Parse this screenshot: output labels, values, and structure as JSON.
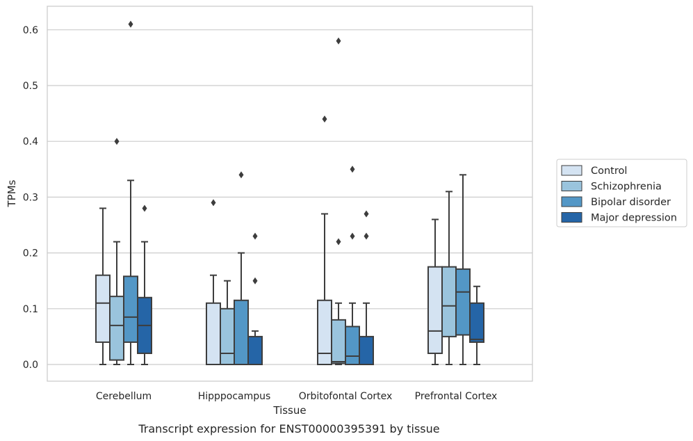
{
  "caption": "Transcript expression for ENST00000395391 by tissue",
  "chart_data": {
    "type": "box",
    "xlabel": "Tissue",
    "ylabel": "TPMs",
    "ylim": [
      -0.03,
      0.64
    ],
    "yticks": [
      "0.0",
      "0.1",
      "0.2",
      "0.3",
      "0.4",
      "0.5",
      "0.6"
    ],
    "grid": true,
    "legend_position": "right",
    "categories": [
      "Cerebellum",
      "Hipppocampus",
      "Orbitofontal Cortex",
      "Prefrontal Cortex"
    ],
    "series": [
      {
        "name": "Control",
        "color": "#d4e3f2",
        "boxes": [
          {
            "whislo": 0.0,
            "q1": 0.04,
            "med": 0.11,
            "q3": 0.16,
            "whishi": 0.28,
            "fliers": []
          },
          {
            "whislo": 0.0,
            "q1": 0.0,
            "med": 0.0,
            "q3": 0.11,
            "whishi": 0.16,
            "fliers": [
              0.29
            ]
          },
          {
            "whislo": 0.0,
            "q1": 0.0,
            "med": 0.02,
            "q3": 0.115,
            "whishi": 0.27,
            "fliers": [
              0.44
            ]
          },
          {
            "whislo": 0.0,
            "q1": 0.02,
            "med": 0.06,
            "q3": 0.175,
            "whishi": 0.26,
            "fliers": []
          }
        ]
      },
      {
        "name": "Schizophrenia",
        "color": "#9ac4dd",
        "boxes": [
          {
            "whislo": 0.0,
            "q1": 0.008,
            "med": 0.07,
            "q3": 0.122,
            "whishi": 0.22,
            "fliers": [
              0.4
            ]
          },
          {
            "whislo": 0.0,
            "q1": 0.0,
            "med": 0.02,
            "q3": 0.1,
            "whishi": 0.15,
            "fliers": []
          },
          {
            "whislo": 0.0,
            "q1": 0.002,
            "med": 0.005,
            "q3": 0.08,
            "whishi": 0.11,
            "fliers": [
              0.22,
              0.58
            ]
          },
          {
            "whislo": 0.0,
            "q1": 0.05,
            "med": 0.105,
            "q3": 0.175,
            "whishi": 0.31,
            "fliers": []
          }
        ]
      },
      {
        "name": "Bipolar disorder",
        "color": "#5397c6",
        "boxes": [
          {
            "whislo": 0.0,
            "q1": 0.04,
            "med": 0.085,
            "q3": 0.158,
            "whishi": 0.33,
            "fliers": [
              0.61
            ]
          },
          {
            "whislo": 0.0,
            "q1": 0.0,
            "med": 0.0,
            "q3": 0.115,
            "whishi": 0.2,
            "fliers": [
              0.34
            ]
          },
          {
            "whislo": 0.0,
            "q1": 0.0,
            "med": 0.015,
            "q3": 0.068,
            "whishi": 0.11,
            "fliers": [
              0.23,
              0.35
            ]
          },
          {
            "whislo": 0.0,
            "q1": 0.053,
            "med": 0.13,
            "q3": 0.171,
            "whishi": 0.34,
            "fliers": []
          }
        ]
      },
      {
        "name": "Major depression",
        "color": "#2565a7",
        "boxes": [
          {
            "whislo": 0.0,
            "q1": 0.02,
            "med": 0.07,
            "q3": 0.12,
            "whishi": 0.22,
            "fliers": [
              0.28
            ]
          },
          {
            "whislo": 0.0,
            "q1": 0.0,
            "med": 0.0,
            "q3": 0.05,
            "whishi": 0.06,
            "fliers": [
              0.15,
              0.23
            ]
          },
          {
            "whislo": 0.0,
            "q1": 0.0,
            "med": 0.0,
            "q3": 0.05,
            "whishi": 0.11,
            "fliers": [
              0.23,
              0.27
            ]
          },
          {
            "whislo": 0.0,
            "q1": 0.04,
            "med": 0.045,
            "q3": 0.11,
            "whishi": 0.14,
            "fliers": []
          }
        ]
      }
    ]
  }
}
